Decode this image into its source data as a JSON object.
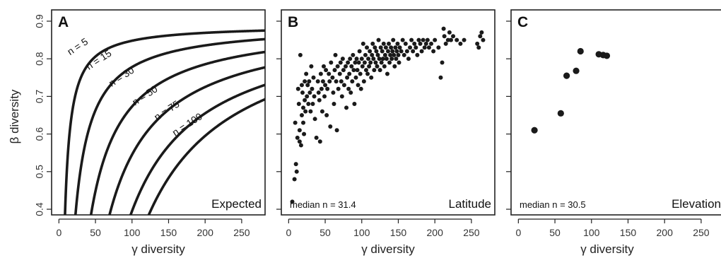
{
  "y_axis_label": "β diversity",
  "chart_data": [
    {
      "type": "line",
      "panel": "A",
      "corner_label": "Expected",
      "xlabel": "γ diversity",
      "ylabel": "β diversity",
      "xlim": [
        -10,
        282
      ],
      "ylim": [
        0.385,
        0.93
      ],
      "xticks": [
        0,
        50,
        100,
        150,
        200,
        250
      ],
      "yticks": [
        0.4,
        0.5,
        0.6,
        0.7,
        0.8,
        0.9
      ],
      "series": [
        {
          "name": "n = 5",
          "n": 5
        },
        {
          "name": "n = 15",
          "n": 15
        },
        {
          "name": "n = 30",
          "n": 30
        },
        {
          "name": "n = 50",
          "n": 50
        },
        {
          "name": "n = 75",
          "n": 75
        },
        {
          "name": "n = 100",
          "n": 100
        }
      ]
    },
    {
      "type": "scatter",
      "panel": "B",
      "corner_label": "Latitude",
      "median_label": "median n = 31.4",
      "xlabel": "γ diversity",
      "xlim": [
        -10,
        282
      ],
      "ylim": [
        0.385,
        0.93
      ],
      "xticks": [
        0,
        50,
        100,
        150,
        200,
        250
      ],
      "yticks": [
        0.4,
        0.5,
        0.6,
        0.7,
        0.8,
        0.9
      ],
      "point_size": "small",
      "points": [
        [
          5,
          0.42
        ],
        [
          8,
          0.48
        ],
        [
          9,
          0.63
        ],
        [
          10,
          0.52
        ],
        [
          11,
          0.5
        ],
        [
          12,
          0.59
        ],
        [
          13,
          0.72
        ],
        [
          14,
          0.68
        ],
        [
          15,
          0.61
        ],
        [
          15,
          0.58
        ],
        [
          16,
          0.81
        ],
        [
          17,
          0.57
        ],
        [
          18,
          0.73
        ],
        [
          18,
          0.65
        ],
        [
          19,
          0.71
        ],
        [
          20,
          0.63
        ],
        [
          20,
          0.67
        ],
        [
          21,
          0.6
        ],
        [
          22,
          0.74
        ],
        [
          22,
          0.69
        ],
        [
          23,
          0.66
        ],
        [
          24,
          0.76
        ],
        [
          25,
          0.7
        ],
        [
          26,
          0.73
        ],
        [
          27,
          0.68
        ],
        [
          28,
          0.74
        ],
        [
          29,
          0.71
        ],
        [
          30,
          0.66
        ],
        [
          31,
          0.78
        ],
        [
          32,
          0.72
        ],
        [
          33,
          0.68
        ],
        [
          34,
          0.75
        ],
        [
          35,
          0.7
        ],
        [
          36,
          0.64
        ],
        [
          38,
          0.59
        ],
        [
          40,
          0.74
        ],
        [
          41,
          0.71
        ],
        [
          42,
          0.69
        ],
        [
          43,
          0.58
        ],
        [
          44,
          0.76
        ],
        [
          45,
          0.72
        ],
        [
          46,
          0.66
        ],
        [
          47,
          0.74
        ],
        [
          48,
          0.78
        ],
        [
          49,
          0.7
        ],
        [
          50,
          0.73
        ],
        [
          51,
          0.77
        ],
        [
          52,
          0.65
        ],
        [
          53,
          0.72
        ],
        [
          55,
          0.76
        ],
        [
          56,
          0.74
        ],
        [
          57,
          0.62
        ],
        [
          58,
          0.79
        ],
        [
          60,
          0.75
        ],
        [
          61,
          0.71
        ],
        [
          62,
          0.68
        ],
        [
          63,
          0.77
        ],
        [
          64,
          0.81
        ],
        [
          65,
          0.74
        ],
        [
          66,
          0.61
        ],
        [
          67,
          0.78
        ],
        [
          68,
          0.72
        ],
        [
          70,
          0.76
        ],
        [
          71,
          0.79
        ],
        [
          72,
          0.74
        ],
        [
          73,
          0.7
        ],
        [
          74,
          0.8
        ],
        [
          75,
          0.77
        ],
        [
          76,
          0.73
        ],
        [
          78,
          0.78
        ],
        [
          79,
          0.67
        ],
        [
          80,
          0.75
        ],
        [
          81,
          0.79
        ],
        [
          82,
          0.72
        ],
        [
          83,
          0.76
        ],
        [
          84,
          0.8
        ],
        [
          85,
          0.71
        ],
        [
          86,
          0.78
        ],
        [
          87,
          0.74
        ],
        [
          88,
          0.81
        ],
        [
          89,
          0.77
        ],
        [
          90,
          0.68
        ],
        [
          91,
          0.79
        ],
        [
          92,
          0.75
        ],
        [
          93,
          0.8
        ],
        [
          94,
          0.77
        ],
        [
          95,
          0.73
        ],
        [
          96,
          0.79
        ],
        [
          97,
          0.82
        ],
        [
          98,
          0.76
        ],
        [
          99,
          0.72
        ],
        [
          100,
          0.8
        ],
        [
          101,
          0.78
        ],
        [
          102,
          0.84
        ],
        [
          103,
          0.74
        ],
        [
          104,
          0.79
        ],
        [
          105,
          0.81
        ],
        [
          106,
          0.77
        ],
        [
          107,
          0.83
        ],
        [
          108,
          0.76
        ],
        [
          109,
          0.8
        ],
        [
          110,
          0.78
        ],
        [
          111,
          0.82
        ],
        [
          112,
          0.79
        ],
        [
          113,
          0.75
        ],
        [
          114,
          0.81
        ],
        [
          115,
          0.84
        ],
        [
          116,
          0.8
        ],
        [
          117,
          0.77
        ],
        [
          118,
          0.83
        ],
        [
          119,
          0.79
        ],
        [
          120,
          0.82
        ],
        [
          121,
          0.78
        ],
        [
          122,
          0.81
        ],
        [
          123,
          0.85
        ],
        [
          124,
          0.8
        ],
        [
          125,
          0.77
        ],
        [
          126,
          0.83
        ],
        [
          127,
          0.79
        ],
        [
          128,
          0.82
        ],
        [
          129,
          0.8
        ],
        [
          130,
          0.84
        ],
        [
          131,
          0.78
        ],
        [
          132,
          0.81
        ],
        [
          133,
          0.83
        ],
        [
          134,
          0.8
        ],
        [
          135,
          0.76
        ],
        [
          136,
          0.82
        ],
        [
          137,
          0.84
        ],
        [
          138,
          0.79
        ],
        [
          139,
          0.81
        ],
        [
          140,
          0.83
        ],
        [
          141,
          0.8
        ],
        [
          142,
          0.82
        ],
        [
          143,
          0.85
        ],
        [
          144,
          0.81
        ],
        [
          145,
          0.78
        ],
        [
          146,
          0.83
        ],
        [
          147,
          0.8
        ],
        [
          148,
          0.82
        ],
        [
          149,
          0.84
        ],
        [
          150,
          0.81
        ],
        [
          151,
          0.79
        ],
        [
          152,
          0.83
        ],
        [
          154,
          0.82
        ],
        [
          156,
          0.85
        ],
        [
          158,
          0.81
        ],
        [
          160,
          0.84
        ],
        [
          162,
          0.82
        ],
        [
          164,
          0.8
        ],
        [
          166,
          0.83
        ],
        [
          168,
          0.85
        ],
        [
          170,
          0.82
        ],
        [
          172,
          0.84
        ],
        [
          174,
          0.83
        ],
        [
          176,
          0.81
        ],
        [
          178,
          0.85
        ],
        [
          180,
          0.84
        ],
        [
          182,
          0.82
        ],
        [
          184,
          0.85
        ],
        [
          186,
          0.83
        ],
        [
          188,
          0.84
        ],
        [
          190,
          0.85
        ],
        [
          192,
          0.83
        ],
        [
          195,
          0.84
        ],
        [
          198,
          0.82
        ],
        [
          200,
          0.85
        ],
        [
          205,
          0.83
        ],
        [
          208,
          0.75
        ],
        [
          210,
          0.79
        ],
        [
          212,
          0.88
        ],
        [
          213,
          0.86
        ],
        [
          215,
          0.84
        ],
        [
          218,
          0.85
        ],
        [
          220,
          0.87
        ],
        [
          222,
          0.85
        ],
        [
          225,
          0.86
        ],
        [
          230,
          0.85
        ],
        [
          235,
          0.84
        ],
        [
          240,
          0.85
        ],
        [
          258,
          0.84
        ],
        [
          260,
          0.83
        ],
        [
          262,
          0.86
        ],
        [
          264,
          0.87
        ],
        [
          266,
          0.85
        ]
      ]
    },
    {
      "type": "scatter",
      "panel": "C",
      "corner_label": "Elevation",
      "median_label": "median n = 30.5",
      "xlabel": "γ diversity",
      "xlim": [
        -10,
        282
      ],
      "ylim": [
        0.385,
        0.93
      ],
      "xticks": [
        0,
        50,
        100,
        150,
        200,
        250
      ],
      "yticks": [
        0.4,
        0.5,
        0.6,
        0.7,
        0.8,
        0.9
      ],
      "point_size": "large",
      "points": [
        [
          22,
          0.61
        ],
        [
          58,
          0.655
        ],
        [
          66,
          0.755
        ],
        [
          79,
          0.768
        ],
        [
          85,
          0.82
        ],
        [
          110,
          0.812
        ],
        [
          116,
          0.81
        ],
        [
          121,
          0.808
        ]
      ]
    }
  ]
}
